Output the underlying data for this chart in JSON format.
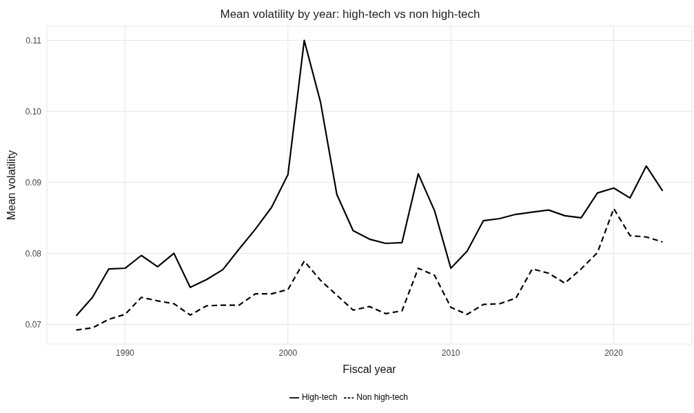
{
  "chart_data": {
    "type": "line",
    "title": "Mean volatility by year: high-tech vs non high-tech",
    "xlabel": "Fiscal year",
    "ylabel": "Mean volatility",
    "x": [
      1987,
      1988,
      1989,
      1990,
      1991,
      1992,
      1993,
      1994,
      1995,
      1996,
      1997,
      1998,
      1999,
      2000,
      2001,
      2002,
      2003,
      2004,
      2005,
      2006,
      2007,
      2008,
      2009,
      2010,
      2011,
      2012,
      2013,
      2014,
      2015,
      2016,
      2017,
      2018,
      2019,
      2020,
      2021,
      2022,
      2023
    ],
    "series": [
      {
        "name": "High-tech",
        "color": "#000000",
        "line_style": "solid",
        "values": [
          0.0712,
          0.0738,
          0.0778,
          0.0779,
          0.0797,
          0.0781,
          0.08,
          0.0752,
          0.0763,
          0.0777,
          0.0806,
          0.0834,
          0.0865,
          0.0911,
          0.11,
          0.1013,
          0.0883,
          0.0832,
          0.082,
          0.0814,
          0.0815,
          0.0912,
          0.086,
          0.0779,
          0.0803,
          0.0846,
          0.0849,
          0.0855,
          0.0858,
          0.0861,
          0.0853,
          0.085,
          0.0885,
          0.0892,
          0.0878,
          0.0923,
          0.0888
        ]
      },
      {
        "name": "Non high-tech",
        "color": "#000000",
        "line_style": "dashed",
        "values": [
          0.0692,
          0.0695,
          0.0707,
          0.0714,
          0.0738,
          0.0733,
          0.0729,
          0.0713,
          0.0726,
          0.0727,
          0.0727,
          0.0743,
          0.0743,
          0.0749,
          0.0789,
          0.0762,
          0.0741,
          0.072,
          0.0725,
          0.0715,
          0.0719,
          0.0779,
          0.0769,
          0.0724,
          0.0714,
          0.0728,
          0.0729,
          0.0737,
          0.0778,
          0.0772,
          0.0758,
          0.0778,
          0.0801,
          0.0863,
          0.0825,
          0.0823,
          0.0816
        ]
      }
    ],
    "xlim": [
      1985.2,
      2024.8
    ],
    "xticks": [
      1990,
      2000,
      2010,
      2020
    ],
    "ylim": [
      0.0672,
      0.112
    ],
    "yticks": [
      {
        "value": 0.07,
        "label": "0.07"
      },
      {
        "value": 0.08,
        "label": "0.08"
      },
      {
        "value": 0.09,
        "label": "0.09"
      },
      {
        "value": 0.1,
        "label": "0.10"
      },
      {
        "value": 0.11,
        "label": "0.11"
      }
    ],
    "grid": true,
    "legend": "bottom",
    "marker": "none"
  }
}
